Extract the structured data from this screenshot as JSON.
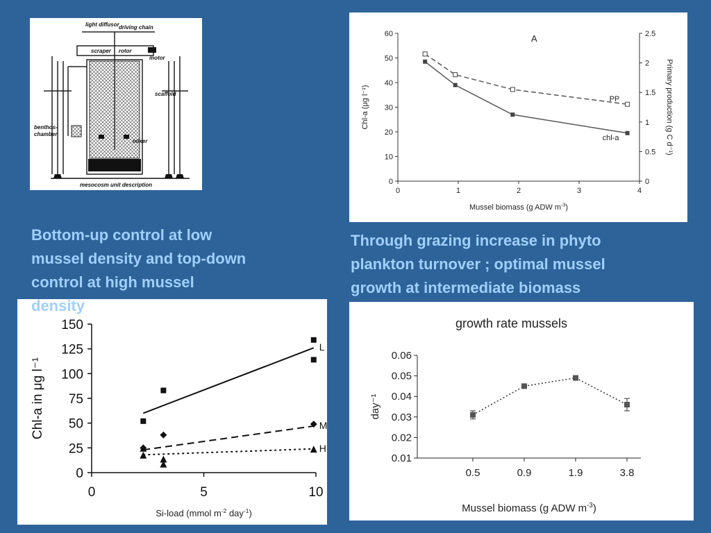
{
  "slide": {
    "background": "#2e6399",
    "caption_color": "#9fd0ff",
    "caption_left": "Bottom-up control at low\nmussel density and top-down\ncontrol at high mussel\ndensity",
    "caption_right": "Through grazing increase in phyto\nplankton turnover ; optimal mussel\ngrowth at intermediate biomass"
  },
  "diagram": {
    "labels": {
      "light_diffusor": "light diffusor",
      "driving_chain": "driving chain",
      "scraper": "scraper",
      "rotor": "rotor",
      "motor": "motor",
      "scaffold": "scaffold",
      "benthos_chamber_1": "benthos-",
      "benthos_chamber_2": "chamber",
      "mixer": "mixer",
      "caption": "mesocosm unit description"
    }
  },
  "chart_data": [
    {
      "id": "chl_pp",
      "type": "line",
      "annotation": "A",
      "xlabel": "Mussel biomass (g ADW m",
      "xlabel_sup": "-3",
      "xlabel_end": ")",
      "ylabel": "Chl-a (μg l⁻¹)",
      "y2label": "Primary production (g C d⁻¹)",
      "xlim": [
        0,
        4
      ],
      "ylim": [
        0,
        60
      ],
      "y2lim": [
        0,
        2.5
      ],
      "xticks": [
        "0",
        "1",
        "2",
        "3",
        "4"
      ],
      "yticks": [
        "0",
        "10",
        "20",
        "30",
        "40",
        "50",
        "60"
      ],
      "y2ticks": [
        "0",
        "0.5",
        "1",
        "1.5",
        "2",
        "2.5"
      ],
      "series": [
        {
          "name": "chl-a",
          "axis": "left",
          "x": [
            0.45,
            0.95,
            1.9,
            3.8
          ],
          "values": [
            48.5,
            39,
            27,
            19.5
          ]
        },
        {
          "name": "PP",
          "axis": "right",
          "x": [
            0.45,
            0.95,
            1.9,
            3.8
          ],
          "values": [
            2.15,
            1.8,
            1.55,
            1.3
          ]
        }
      ]
    },
    {
      "id": "chl_si",
      "type": "scatter",
      "xlabel": "Si-load (mmol m",
      "xlabel_sup": "-2",
      "xlabel_mid": " day",
      "xlabel_sup2": "-1",
      "xlabel_end": ")",
      "ylabel": "Chl-a in μg l⁻¹",
      "xlim": [
        0,
        10
      ],
      "ylim": [
        0,
        150
      ],
      "xticks": [
        "0",
        "5",
        "10"
      ],
      "yticks": [
        "0",
        "25",
        "50",
        "75",
        "100",
        "125",
        "150"
      ],
      "series": [
        {
          "name": "L",
          "marker": "square",
          "x": [
            2.3,
            3.2,
            9.9,
            9.9
          ],
          "values": [
            52,
            83,
            134,
            114
          ],
          "fit": [
            [
              2.3,
              60
            ],
            [
              9.9,
              126
            ]
          ]
        },
        {
          "name": "M",
          "marker": "diamond",
          "x": [
            2.3,
            3.2,
            9.9
          ],
          "values": [
            25,
            38,
            49
          ],
          "fit": [
            [
              2.3,
              23
            ],
            [
              9.9,
              47
            ]
          ]
        },
        {
          "name": "H",
          "marker": "triangle",
          "x": [
            2.3,
            2.3,
            3.2,
            3.2,
            9.9
          ],
          "values": [
            24,
            17,
            13,
            8,
            23
          ],
          "fit": [
            [
              2.3,
              18
            ],
            [
              9.9,
              24
            ]
          ]
        }
      ]
    },
    {
      "id": "growth",
      "type": "line",
      "title": "growth rate mussels",
      "xlabel": "Mussel biomass (g ADW m",
      "xlabel_sup": "-3",
      "xlabel_end": ")",
      "ylabel": "day⁻¹",
      "ylim": [
        0.01,
        0.06
      ],
      "categories": [
        "0.5",
        "0.9",
        "1.9",
        "3.8"
      ],
      "yticks": [
        "0.01",
        "0.02",
        "0.03",
        "0.04",
        "0.05",
        "0.06"
      ],
      "series": [
        {
          "values": [
            0.031,
            0.045,
            0.049,
            0.036
          ],
          "err": [
            0.002,
            0.001,
            0.001,
            0.003
          ]
        }
      ]
    }
  ]
}
